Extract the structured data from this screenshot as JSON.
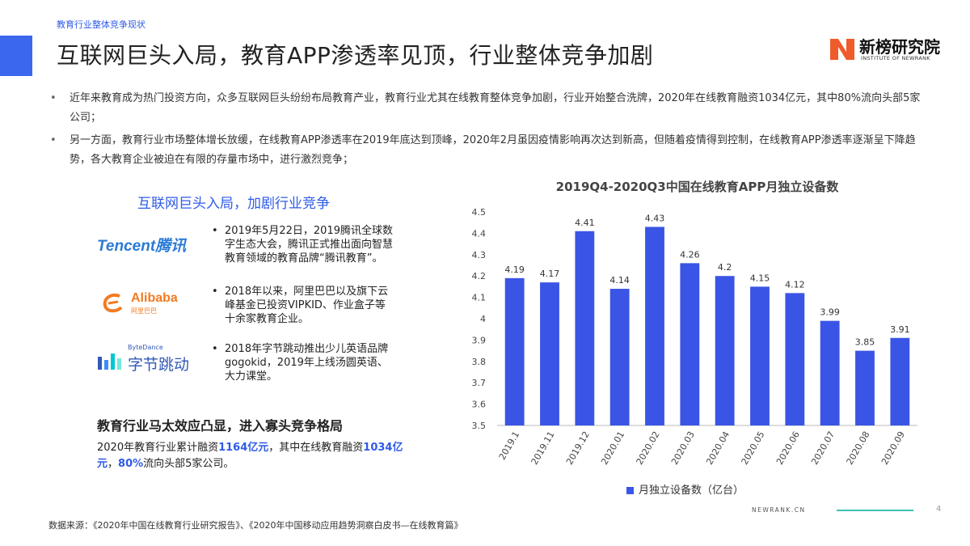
{
  "header": {
    "section_label": "教育行业整体竞争现状",
    "title": "互联网巨头入局，教育APP渗透率见顶，行业整体竞争加剧",
    "brand_name": "新榜研究院",
    "brand_sub": "INSTITUTE OF NEWRANK",
    "brand_color": "#ef5b2b"
  },
  "bullets": [
    "近年来教育成为热门投资方向，众多互联网巨头纷纷布局教育产业，教育行业尤其在线教育整体竞争加剧，行业开始整合洗牌，2020年在线教育融资1034亿元，其中80%流向头部5家公司；",
    "另一方面，教育行业市场整体增长放缓，在线教育APP渗透率在2019年底达到顶峰，2020年2月虽因疫情影响再次达到新高，但随着疫情得到控制，在线教育APP渗透率逐渐呈下降趋势，各大教育企业被迫在有限的存量市场中，进行激烈竞争；"
  ],
  "left_panel": {
    "heading": "互联网巨头入局，加剧行业竞争",
    "companies": [
      {
        "logo": "Tencent腾讯",
        "logo_icon": "tencent-logo",
        "text": "2019年5月22日，2019腾讯全球数字生态大会，腾讯正式推出面向智慧教育领域的教育品牌“腾讯教育”。"
      },
      {
        "logo": "Alibaba",
        "logo_sub": "阿里巴巴",
        "logo_icon": "alibaba-logo",
        "text": "2018年以来，阿里巴巴以及旗下云峰基金已投资VIPKID、作业盒子等十余家教育企业。"
      },
      {
        "logo": "字节跳动",
        "logo_sub": "ByteDance",
        "logo_icon": "bytedance-logo",
        "text": "2018年字节跳动推出少儿英语品牌gogokid，2019年上线汤圆英语、大力课堂。"
      }
    ],
    "sub_heading": "教育行业马太效应凸显，进入寡头竞争格局",
    "summary": {
      "p1": "2020年教育行业累计融资",
      "v1": "1164亿元",
      "p2": "，其中在线教育融资",
      "v2": "1034亿元",
      "p3": "，",
      "v3": "80%",
      "p4": "流向头部5家公司。"
    }
  },
  "chart_data": {
    "type": "bar",
    "title": "2019Q4-2020Q3中国在线教育APP月独立设备数",
    "categories": [
      "2019.1",
      "2019.11",
      "2019.12",
      "2020.01",
      "2020.02",
      "2020.03",
      "2020.04",
      "2020.05",
      "2020.06",
      "2020.07",
      "2020.08",
      "2020.09"
    ],
    "series": [
      {
        "name": "月独立设备数（亿台）",
        "values": [
          4.19,
          4.17,
          4.41,
          4.14,
          4.43,
          4.26,
          4.2,
          4.15,
          4.12,
          3.99,
          3.85,
          3.91
        ],
        "color": "#3a55e5"
      }
    ],
    "ylim": [
      3.5,
      4.5
    ],
    "yticks": [
      "3.5",
      "3.6",
      "3.7",
      "3.8",
      "3.9",
      "4",
      "4.1",
      "4.2",
      "4.3",
      "4.4",
      "4.5"
    ],
    "grid": false,
    "legend": "bottom"
  },
  "footer": {
    "source": "数据来源：《2020年中国在线教育行业研究报告》、《2020年中国移动应用趋势洞察白皮书—在线教育篇》",
    "site": "NEWRANK.CN",
    "page": "4"
  }
}
